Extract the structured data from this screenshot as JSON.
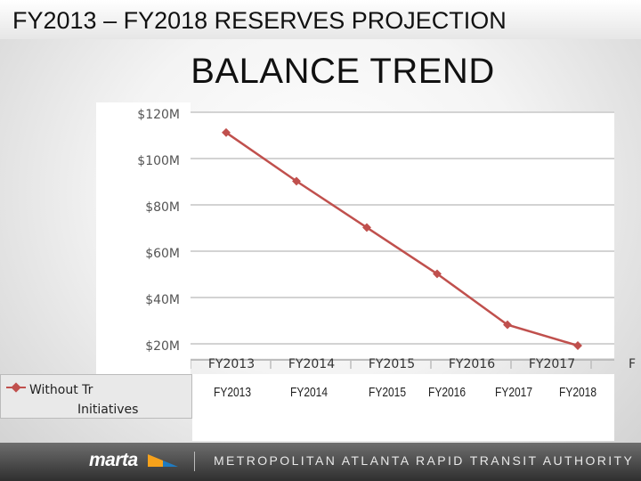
{
  "header": {
    "title": "FY2013 – FY2018 RESERVES PROJECTION"
  },
  "subtitle": "BALANCE TREND",
  "chart_data": {
    "type": "line",
    "title": "BALANCE TREND",
    "categories": [
      "FY2013",
      "FY2014",
      "FY2015",
      "FY2016",
      "FY2017",
      "F"
    ],
    "y_ticks": [
      "$20M",
      "$40M",
      "$60M",
      "$80M",
      "$100M",
      "$120M"
    ],
    "ylim": [
      20,
      120
    ],
    "series": [
      {
        "name": "Without Tr... Initiatives",
        "color": "#c0504d",
        "values": [
          112,
          91,
          71,
          51,
          29,
          20
        ]
      }
    ],
    "grid": true,
    "legend_position": "left"
  },
  "legend": {
    "line1": "Without Tr",
    "line2": "Initiatives"
  },
  "overlay_labels": [
    "FY2013",
    "FY2014",
    "FY2015",
    "FY2016",
    "FY2017",
    "FY2018"
  ],
  "footer": {
    "logo": "marta",
    "authority": "METROPOLITAN ATLANTA RAPID TRANSIT AUTHORITY"
  }
}
